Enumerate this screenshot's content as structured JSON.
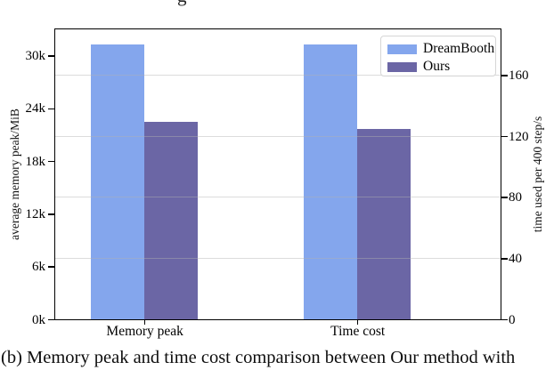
{
  "figure": {
    "top_text_fragment": "g",
    "caption": "(b) Memory peak and time cost comparison between Our method with"
  },
  "chart_data": {
    "type": "bar",
    "title": "",
    "categories": [
      "Memory peak",
      "Time cost"
    ],
    "category_axis": [
      "left",
      "right"
    ],
    "category_units": [
      "MiB",
      "s"
    ],
    "series": [
      {
        "name": "DreamBooth",
        "color": "#84a6ed",
        "values": [
          31300,
          180
        ]
      },
      {
        "name": "Ours",
        "color": "#6b66a5",
        "values": [
          22500,
          125
        ]
      }
    ],
    "left_axis": {
      "label": "average memory peak/MiB",
      "tick_labels": [
        "0k",
        "6k",
        "12k",
        "18k",
        "24k",
        "30k"
      ],
      "tick_values": [
        0,
        6000,
        12000,
        18000,
        24000,
        30000
      ],
      "range": [
        0,
        33000
      ]
    },
    "right_axis": {
      "label": "time used per 400 step/s",
      "tick_labels": [
        "0",
        "40",
        "80",
        "120",
        "160"
      ],
      "tick_values": [
        0,
        40,
        80,
        120,
        160
      ],
      "range": [
        0,
        190
      ]
    },
    "legend": {
      "position": "upper right",
      "entries": [
        "DreamBooth",
        "Ours"
      ]
    },
    "grid": {
      "horizontal": true,
      "aligned_to": "right_axis",
      "color": "#e2e2e2"
    },
    "spine_color": "#000000"
  }
}
